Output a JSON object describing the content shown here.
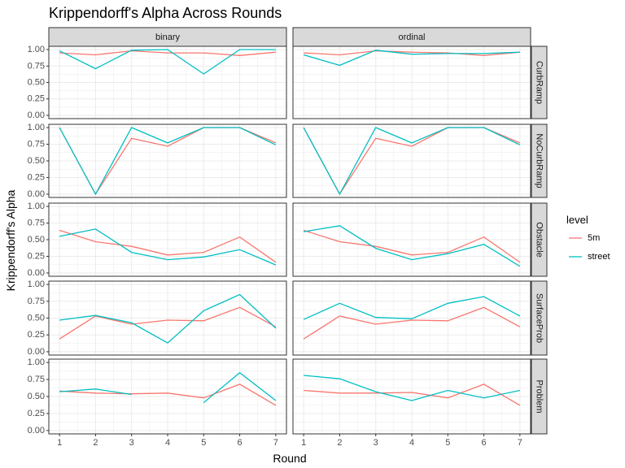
{
  "chart_data": {
    "type": "line",
    "title": "Krippendorff's Alpha Across Rounds",
    "xlabel": "Round",
    "ylabel": "Krippendorff's Alpha",
    "x": [
      1,
      2,
      3,
      4,
      5,
      6,
      7
    ],
    "xlim": [
      1,
      7
    ],
    "ylim": [
      0,
      1
    ],
    "yticks": [
      "0.00",
      "0.25",
      "0.50",
      "0.75",
      "1.00"
    ],
    "columns": [
      "binary",
      "ordinal"
    ],
    "rows": [
      "CurbRamp",
      "NoCurbRamp",
      "Obstacle",
      "SurfaceProb",
      "Problem"
    ],
    "legend": {
      "title": "level",
      "position": "right",
      "items": [
        {
          "label": "5m",
          "color": "#F8766D"
        },
        {
          "label": "street",
          "color": "#00BFC4"
        }
      ]
    },
    "grid": true,
    "panels": [
      {
        "row": "CurbRamp",
        "column": "binary",
        "series": [
          {
            "name": "5m",
            "values": [
              0.95,
              0.92,
              0.98,
              0.95,
              0.95,
              0.91,
              0.96
            ]
          },
          {
            "name": "street",
            "values": [
              0.98,
              0.71,
              0.99,
              1.0,
              0.63,
              1.0,
              1.0
            ]
          }
        ]
      },
      {
        "row": "CurbRamp",
        "column": "ordinal",
        "series": [
          {
            "name": "5m",
            "values": [
              0.95,
              0.92,
              0.98,
              0.96,
              0.95,
              0.91,
              0.96
            ]
          },
          {
            "name": "street",
            "values": [
              0.92,
              0.76,
              0.99,
              0.93,
              0.94,
              0.94,
              0.96
            ]
          }
        ]
      },
      {
        "row": "NoCurbRamp",
        "column": "binary",
        "series": [
          {
            "name": "5m",
            "values": [
              1.0,
              0.0,
              0.84,
              0.72,
              1.0,
              1.0,
              0.77
            ]
          },
          {
            "name": "street",
            "values": [
              1.0,
              0.0,
              1.0,
              0.77,
              1.0,
              1.0,
              0.74
            ]
          }
        ]
      },
      {
        "row": "NoCurbRamp",
        "column": "ordinal",
        "series": [
          {
            "name": "5m",
            "values": [
              1.0,
              0.0,
              0.84,
              0.72,
              1.0,
              1.0,
              0.77
            ]
          },
          {
            "name": "street",
            "values": [
              1.0,
              0.0,
              1.0,
              0.77,
              1.0,
              1.0,
              0.74
            ]
          }
        ]
      },
      {
        "row": "Obstacle",
        "column": "binary",
        "series": [
          {
            "name": "5m",
            "values": [
              0.64,
              0.47,
              0.4,
              0.27,
              0.31,
              0.54,
              0.16
            ]
          },
          {
            "name": "street",
            "values": [
              0.55,
              0.66,
              0.31,
              0.2,
              0.24,
              0.35,
              0.12
            ]
          }
        ]
      },
      {
        "row": "Obstacle",
        "column": "ordinal",
        "series": [
          {
            "name": "5m",
            "values": [
              0.64,
              0.47,
              0.4,
              0.27,
              0.31,
              0.54,
              0.16
            ]
          },
          {
            "name": "street",
            "values": [
              0.62,
              0.71,
              0.37,
              0.2,
              0.29,
              0.43,
              0.1
            ]
          }
        ]
      },
      {
        "row": "SurfaceProb",
        "column": "binary",
        "series": [
          {
            "name": "5m",
            "values": [
              0.19,
              0.53,
              0.41,
              0.47,
              0.46,
              0.66,
              0.37
            ]
          },
          {
            "name": "street",
            "values": [
              0.47,
              0.54,
              0.43,
              0.13,
              0.61,
              0.85,
              0.35
            ]
          }
        ]
      },
      {
        "row": "SurfaceProb",
        "column": "ordinal",
        "series": [
          {
            "name": "5m",
            "values": [
              0.19,
              0.53,
              0.41,
              0.47,
              0.46,
              0.66,
              0.37
            ]
          },
          {
            "name": "street",
            "values": [
              0.48,
              0.72,
              0.51,
              0.49,
              0.72,
              0.82,
              0.53
            ]
          }
        ]
      },
      {
        "row": "Problem",
        "column": "binary",
        "series": [
          {
            "name": "5m",
            "values": [
              0.58,
              0.55,
              0.54,
              0.55,
              0.48,
              0.68,
              0.37
            ]
          },
          {
            "name": "street",
            "values": [
              0.57,
              0.61,
              0.53,
              null,
              0.41,
              0.85,
              0.44
            ]
          }
        ]
      },
      {
        "row": "Problem",
        "column": "ordinal",
        "series": [
          {
            "name": "5m",
            "values": [
              0.59,
              0.55,
              0.55,
              0.56,
              0.48,
              0.68,
              0.37
            ]
          },
          {
            "name": "street",
            "values": [
              0.81,
              0.76,
              0.57,
              0.44,
              0.59,
              0.48,
              0.59
            ]
          }
        ]
      }
    ]
  }
}
